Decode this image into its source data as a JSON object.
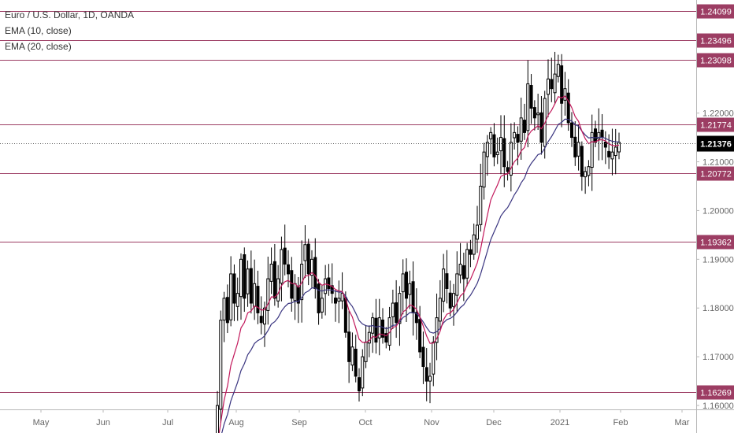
{
  "legend": {
    "symbol": "Euro / U.S. Dollar, 1D, OANDA",
    "ema10": "EMA (10, close)",
    "ema20": "EMA (20, close)"
  },
  "colors": {
    "level_line": "#9c3d63",
    "candle": "#000000",
    "ema10": "#c2185b",
    "ema20": "#3a3580",
    "last_price_bg": "#000000",
    "axis_text": "#666666"
  },
  "chart_data": {
    "type": "candlestick",
    "x_tick_labels": [
      "May",
      "Jun",
      "Jul",
      "Aug",
      "Sep",
      "Oct",
      "Nov",
      "Dec",
      "2021",
      "Feb",
      "Mar"
    ],
    "y_tick_labels": [
      "1.22000",
      "1.21000",
      "1.20000",
      "1.19000",
      "1.18000",
      "1.17000",
      "1.16000"
    ],
    "y_ticks": [
      1.22,
      1.21,
      1.2,
      1.19,
      1.18,
      1.17,
      1.16
    ],
    "ylim": [
      1.1592,
      1.2432
    ],
    "last_price": "1.21376",
    "levels": [
      {
        "label": "1.24099",
        "value": 1.24099
      },
      {
        "label": "1.23496",
        "value": 1.23496
      },
      {
        "label": "1.23098",
        "value": 1.23098
      },
      {
        "label": "1.21774",
        "value": 1.21774
      },
      {
        "label": "1.20772",
        "value": 1.20772
      },
      {
        "label": "1.19362",
        "value": 1.19362
      },
      {
        "label": "1.16269",
        "value": 1.16269
      }
    ],
    "close_series": [
      1.16,
      1.1775,
      1.182,
      1.177,
      1.187,
      1.181,
      1.183,
      1.19,
      1.182,
      1.188,
      1.181,
      1.185,
      1.179,
      1.177,
      1.18,
      1.186,
      1.189,
      1.182,
      1.186,
      1.192,
      1.189,
      1.187,
      1.182,
      1.185,
      1.181,
      1.189,
      1.193,
      1.187,
      1.19,
      1.184,
      1.179,
      1.182,
      1.186,
      1.184,
      1.183,
      1.181,
      1.182,
      1.183,
      1.175,
      1.169,
      1.172,
      1.166,
      1.163,
      1.17,
      1.173,
      1.175,
      1.178,
      1.173,
      1.178,
      1.174,
      1.173,
      1.178,
      1.181,
      1.177,
      1.183,
      1.187,
      1.182,
      1.185,
      1.179,
      1.177,
      1.171,
      1.168,
      1.165,
      1.166,
      1.173,
      1.178,
      1.182,
      1.188,
      1.184,
      1.18,
      1.183,
      1.187,
      1.189,
      1.186,
      1.192,
      1.191,
      1.195,
      1.197,
      1.205,
      1.212,
      1.214,
      1.216,
      1.211,
      1.212,
      1.215,
      1.209,
      1.208,
      1.214,
      1.216,
      1.214,
      1.219,
      1.216,
      1.226,
      1.221,
      1.219,
      1.22,
      1.214,
      1.223,
      1.227,
      1.225,
      1.228,
      1.23,
      1.222,
      1.225,
      1.218,
      1.215,
      1.211,
      1.214,
      1.207,
      1.208,
      1.209,
      1.216,
      1.214,
      1.216,
      1.215,
      1.213,
      1.211,
      1.212,
      1.213,
      1.214
    ]
  }
}
